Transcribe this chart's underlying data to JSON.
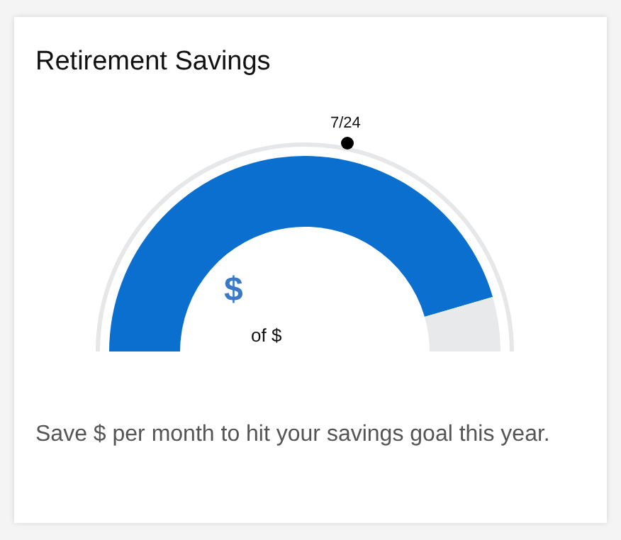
{
  "chart_data": {
    "type": "donut",
    "title": "Retirement Savings",
    "categories": [
      null,
      null
    ],
    "values": [
      91,
      9
    ],
    "colors": [
      "#0a6fce",
      "#e8e9eb"
    ],
    "annotations": [
      "7/24",
      "$",
      "of $",
      "Save $ per month to hit your savings goal this year."
    ]
  }
}
